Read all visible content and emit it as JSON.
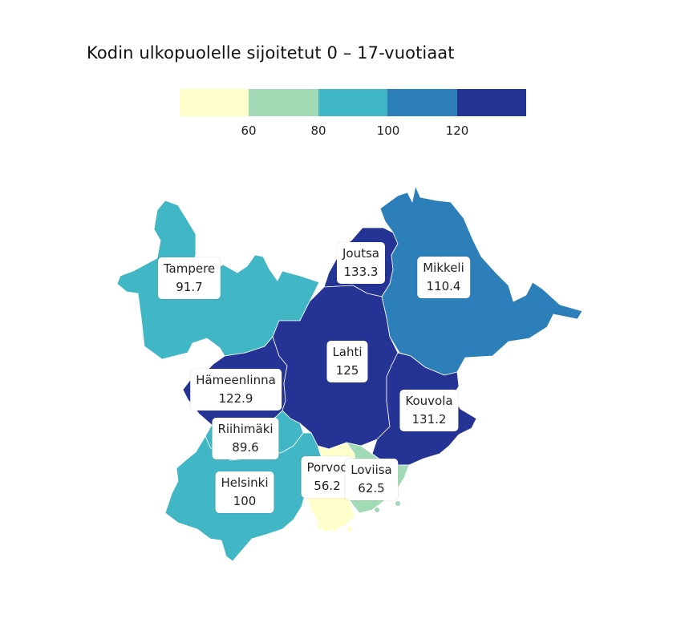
{
  "title": "Kodin ulkopuolelle sijoitetut 0 – 17-vuotiaat",
  "legend": {
    "colors": [
      "#ffffcc",
      "#a1dab4",
      "#41b6c4",
      "#2c7fb8",
      "#253494"
    ],
    "ticks": [
      "60",
      "80",
      "100",
      "120"
    ]
  },
  "regions": [
    {
      "name": "Tampere",
      "value": "91.7",
      "color": "#41b6c4"
    },
    {
      "name": "Joutsa",
      "value": "133.3",
      "color": "#253494"
    },
    {
      "name": "Mikkeli",
      "value": "110.4",
      "color": "#2c7fb8"
    },
    {
      "name": "Lahti",
      "value": "125",
      "color": "#253494"
    },
    {
      "name": "Hämeenlinna",
      "value": "122.9",
      "color": "#253494"
    },
    {
      "name": "Kouvola",
      "value": "131.2",
      "color": "#253494"
    },
    {
      "name": "Riihimäki",
      "value": "89.6",
      "color": "#41b6c4"
    },
    {
      "name": "Porvoo",
      "value": "56.2",
      "color": "#ffffcc"
    },
    {
      "name": "Loviisa",
      "value": "62.5",
      "color": "#a1dab4"
    },
    {
      "name": "Helsinki",
      "value": "100",
      "color": "#41b6c4"
    }
  ]
}
